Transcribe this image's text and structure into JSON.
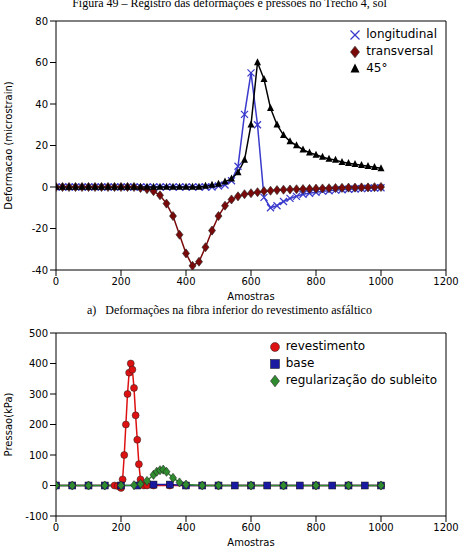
{
  "title": "Figura 49 – Registro das deformações e pressões no Trecho 4, sol",
  "chart_data": [
    {
      "type": "line",
      "caption": "a)   Deformações na fibra inferior do revestimento asfáltico",
      "x_label": "Amostras",
      "y_label": "Deformacao (microstrain)",
      "xlim": [
        0,
        1200
      ],
      "xticks": [
        0,
        200,
        400,
        600,
        800,
        1000,
        1200
      ],
      "ylim": [
        -40,
        80
      ],
      "yticks": [
        -40,
        -20,
        0,
        20,
        40,
        60,
        80
      ],
      "grid": false,
      "legend": "upper right",
      "x": [
        0,
        20,
        40,
        60,
        80,
        100,
        120,
        140,
        160,
        180,
        200,
        220,
        240,
        260,
        280,
        300,
        320,
        340,
        360,
        380,
        400,
        420,
        440,
        460,
        480,
        500,
        520,
        540,
        560,
        580,
        600,
        620,
        640,
        660,
        680,
        700,
        720,
        740,
        760,
        780,
        800,
        820,
        840,
        860,
        880,
        900,
        920,
        940,
        960,
        980,
        1000
      ],
      "series": [
        {
          "name": "longitudinal",
          "color": "#3a3acc",
          "marker": "x",
          "values": [
            0,
            0,
            0,
            0,
            0,
            0,
            0,
            0,
            0,
            0,
            0,
            0,
            0,
            0,
            0,
            0,
            0,
            0,
            0,
            0,
            0,
            0,
            0,
            0,
            0,
            0.5,
            1,
            3,
            10,
            35,
            55,
            30,
            -5,
            -10,
            -9,
            -7,
            -5.5,
            -4.5,
            -3.5,
            -3,
            -2.5,
            -2,
            -1.8,
            -1.5,
            -1.3,
            -1.1,
            -1,
            -0.8,
            -0.6,
            -0.5,
            -0.4
          ]
        },
        {
          "name": "transversal",
          "color": "#7a0a0a",
          "marker": "diamond",
          "values": [
            0,
            0,
            0,
            0,
            0,
            0,
            0,
            0,
            0,
            0,
            0,
            0,
            0,
            -0.5,
            -1,
            -2,
            -4,
            -8,
            -14,
            -23,
            -32,
            -38,
            -36,
            -29,
            -21,
            -14,
            -9,
            -6,
            -4.5,
            -3.5,
            -3,
            -2.5,
            -2,
            -1.8,
            -1.5,
            -1.3,
            -1.2,
            -1.1,
            -1,
            -0.9,
            -0.8,
            -0.7,
            -0.6,
            -0.5,
            -0.4,
            -0.3,
            -0.3,
            -0.2,
            -0.2,
            -0.1,
            0
          ]
        },
        {
          "name": "45°",
          "color": "#000000",
          "marker": "triangle",
          "values": [
            0,
            0,
            0,
            0,
            0,
            0,
            0,
            0,
            0,
            0,
            0,
            0,
            0,
            0,
            0,
            0,
            0,
            0,
            0,
            0,
            0,
            0,
            0,
            0.5,
            1,
            1.5,
            2.5,
            4,
            7,
            13,
            30,
            60,
            52,
            38,
            30,
            25,
            22,
            20,
            18,
            16.5,
            15.5,
            14.5,
            13.5,
            13,
            12,
            11.5,
            11,
            10.5,
            10,
            9.5,
            9
          ]
        }
      ]
    },
    {
      "type": "line",
      "x_label": "Amostras",
      "y_label": "Pressao(kPa)",
      "xlim": [
        0,
        1200
      ],
      "xticks": [
        0,
        200,
        400,
        600,
        800,
        1000,
        1200
      ],
      "ylim": [
        -100,
        500
      ],
      "yticks": [
        -100,
        0,
        100,
        200,
        300,
        400,
        500
      ],
      "grid": false,
      "legend": "upper right",
      "series": [
        {
          "name": "revestimento",
          "color": "#dd1111",
          "marker": "circle",
          "x": [
            0,
            50,
            100,
            150,
            180,
            190,
            200,
            205,
            210,
            215,
            220,
            225,
            230,
            235,
            240,
            245,
            250,
            255,
            260,
            270,
            280,
            300,
            350,
            400,
            500,
            600,
            700,
            800,
            900,
            1000
          ],
          "values": [
            0,
            0,
            0,
            0,
            0,
            -2,
            -8,
            20,
            100,
            200,
            300,
            370,
            400,
            380,
            320,
            230,
            150,
            70,
            20,
            0,
            0,
            0,
            0,
            0,
            0,
            0,
            0,
            0,
            0,
            0
          ]
        },
        {
          "name": "base",
          "color": "#1a1aa0",
          "marker": "square",
          "x": [
            0,
            50,
            100,
            150,
            200,
            250,
            300,
            350,
            400,
            450,
            500,
            550,
            600,
            650,
            700,
            750,
            800,
            850,
            900,
            950,
            1000
          ],
          "values": [
            0,
            0,
            0,
            0,
            0,
            0,
            3,
            3,
            0,
            0,
            0,
            0,
            0,
            0,
            0,
            0,
            0,
            0,
            0,
            0,
            0
          ]
        },
        {
          "name": "regularização do subleito",
          "color": "#2e8b2e",
          "marker": "diamond",
          "x": [
            0,
            50,
            100,
            150,
            200,
            240,
            260,
            280,
            300,
            310,
            320,
            330,
            340,
            360,
            380,
            400,
            450,
            500,
            600,
            700,
            800,
            900,
            1000
          ],
          "values": [
            0,
            0,
            0,
            0,
            0,
            1,
            5,
            15,
            35,
            45,
            50,
            52,
            45,
            25,
            10,
            3,
            0,
            0,
            0,
            0,
            0,
            0,
            0
          ]
        }
      ]
    }
  ]
}
